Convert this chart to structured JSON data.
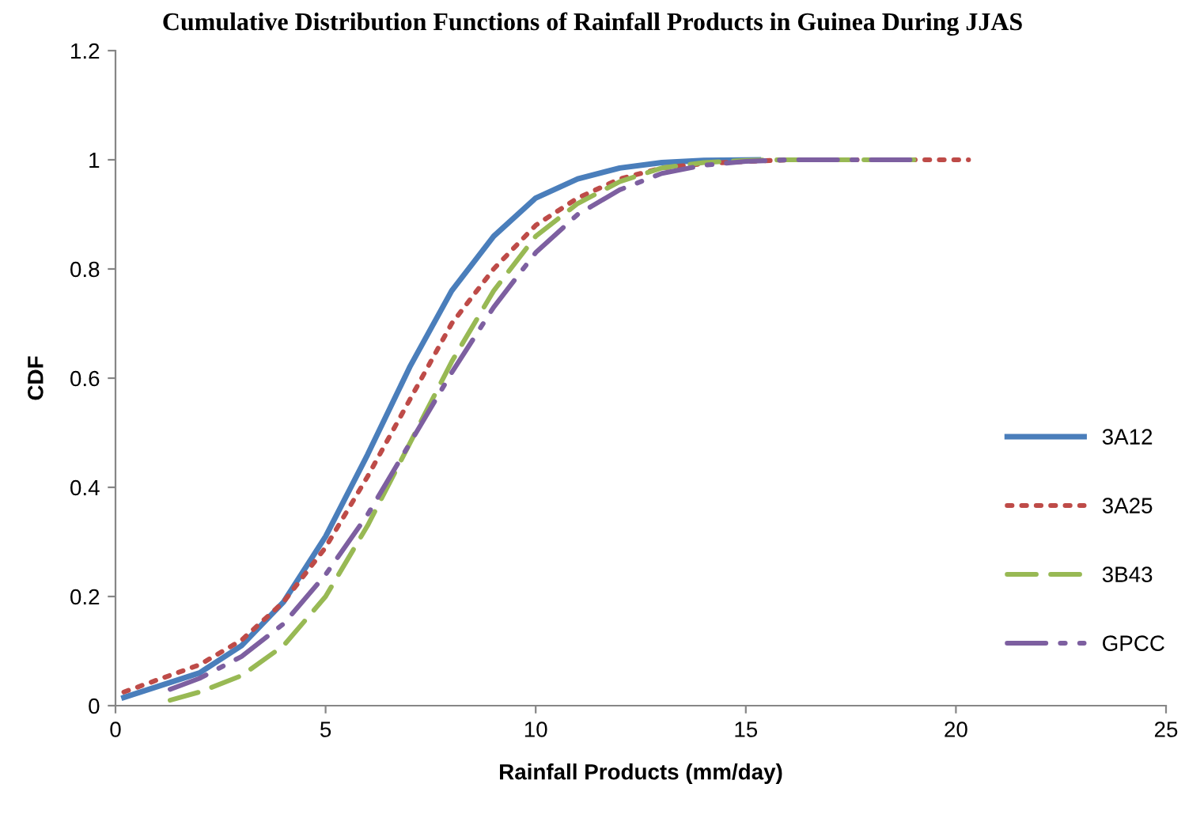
{
  "chart_data": {
    "type": "line",
    "title": "Cumulative Distribution Functions of Rainfall Products in Guinea During JJAS",
    "xlabel": "Rainfall Products (mm/day)",
    "ylabel": "CDF",
    "xlim": [
      0,
      25
    ],
    "xticks": [
      0,
      5,
      10,
      15,
      20,
      25
    ],
    "ylim": [
      0,
      1.2
    ],
    "yticks": [
      0,
      0.2,
      0.4,
      0.6,
      0.8,
      1,
      1.2
    ],
    "grid": false,
    "legend": "right",
    "marker": "none",
    "series": [
      {
        "name": "3A12",
        "color": "#4a7ebb",
        "line_style": "solid",
        "x": [
          0.2,
          2,
          3,
          4,
          5,
          6,
          7,
          8,
          9,
          10,
          11,
          12,
          13,
          14,
          15.3
        ],
        "values": [
          0.015,
          0.06,
          0.11,
          0.19,
          0.31,
          0.46,
          0.62,
          0.76,
          0.86,
          0.93,
          0.965,
          0.985,
          0.995,
          0.999,
          1
        ]
      },
      {
        "name": "3A25",
        "color": "#be4b48",
        "line_style": "dotted",
        "x": [
          0.2,
          2,
          3,
          4,
          5,
          6,
          7,
          8,
          9,
          10,
          11,
          12,
          13,
          14,
          15,
          16,
          20.3
        ],
        "values": [
          0.025,
          0.075,
          0.12,
          0.19,
          0.29,
          0.42,
          0.56,
          0.7,
          0.8,
          0.88,
          0.93,
          0.965,
          0.985,
          0.993,
          0.997,
          1,
          1
        ]
      },
      {
        "name": "3B43",
        "color": "#98b954",
        "line_style": "dashed",
        "x": [
          1.3,
          2,
          3,
          4,
          5,
          6,
          7,
          8,
          9,
          10,
          11,
          12,
          13,
          14,
          15,
          16,
          19
        ],
        "values": [
          0.01,
          0.025,
          0.055,
          0.11,
          0.2,
          0.33,
          0.48,
          0.63,
          0.76,
          0.86,
          0.92,
          0.96,
          0.985,
          0.995,
          0.999,
          1,
          1
        ]
      },
      {
        "name": "GPCC",
        "color": "#7d5fa0",
        "line_style": "dashdot",
        "x": [
          1.3,
          2,
          3,
          4,
          5,
          6,
          7,
          8,
          9,
          10,
          11,
          12,
          13,
          14,
          15,
          16,
          19
        ],
        "values": [
          0.03,
          0.05,
          0.09,
          0.15,
          0.24,
          0.35,
          0.48,
          0.61,
          0.73,
          0.83,
          0.9,
          0.945,
          0.975,
          0.99,
          0.997,
          1,
          1
        ]
      }
    ]
  }
}
